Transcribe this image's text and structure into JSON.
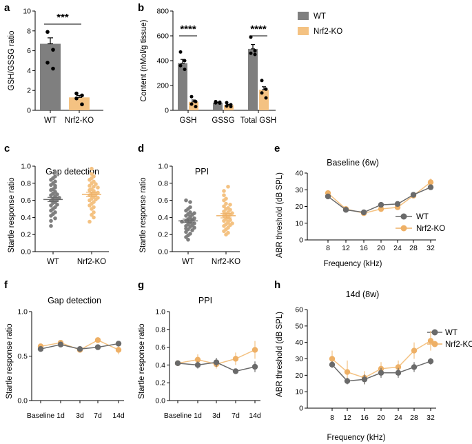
{
  "colors": {
    "wt": "#7f7f7f",
    "ko": "#f4c282",
    "wt_dark": "#6a6a6a",
    "ko_dark": "#eeb066"
  },
  "legend": {
    "wt": "WT",
    "ko": "Nrf2-KO"
  },
  "chart_data": [
    {
      "id": "a",
      "panel_label": "a",
      "type": "bar",
      "ylabel": "GSH/GSSG ratio",
      "ylim": [
        0,
        10
      ],
      "yticks": [
        "0",
        "2",
        "4",
        "6",
        "8",
        "10"
      ],
      "categories": [
        "WT",
        "Nrf2-KO"
      ],
      "values": [
        6.7,
        1.3
      ],
      "errors": [
        0.6,
        0.2
      ],
      "points": [
        [
          7.9,
          6.1,
          4.8,
          4.2
        ],
        [
          1.7,
          1.5,
          1.2,
          0.6
        ]
      ],
      "significance": "***"
    },
    {
      "id": "b",
      "panel_label": "b",
      "type": "bar",
      "ylabel": "Content (nMol/g tissue)",
      "ylim": [
        0,
        800
      ],
      "yticks": [
        "0",
        "200",
        "400",
        "600",
        "800"
      ],
      "categories": [
        "GSH",
        "GSSG",
        "Total GSH"
      ],
      "series": [
        {
          "name": "WT",
          "values": [
            380,
            62,
            495
          ],
          "errors": [
            30,
            4,
            35
          ],
          "points": [
            [
              470,
              400,
              360,
              330
            ],
            [
              70,
              65,
              60,
              58
            ],
            [
              590,
              480,
              460,
              450
            ]
          ]
        },
        {
          "name": "Nrf2-KO",
          "values": [
            68,
            42,
            165
          ],
          "errors": [
            15,
            6,
            25
          ],
          "points": [
            [
              110,
              70,
              50,
              30
            ],
            [
              62,
              45,
              35,
              30
            ],
            [
              240,
              170,
              140,
              100
            ]
          ]
        }
      ],
      "significance": [
        "****",
        "",
        "****"
      ]
    },
    {
      "id": "c",
      "panel_label": "c",
      "type": "scatter",
      "title": "Gap detection",
      "ylabel": "Startle response ratio",
      "ylim": [
        0,
        1
      ],
      "yticks": [
        "0.0",
        "0.2",
        "0.4",
        "0.6",
        "0.8",
        "1.0"
      ],
      "categories": [
        "WT",
        "Nrf2-KO"
      ],
      "means": [
        0.61,
        0.67
      ],
      "sems": [
        0.025,
        0.025
      ],
      "points": [
        [
          0.93,
          0.88,
          0.86,
          0.84,
          0.82,
          0.8,
          0.78,
          0.77,
          0.75,
          0.73,
          0.72,
          0.7,
          0.68,
          0.67,
          0.66,
          0.65,
          0.64,
          0.63,
          0.62,
          0.61,
          0.6,
          0.59,
          0.58,
          0.57,
          0.55,
          0.54,
          0.52,
          0.5,
          0.48,
          0.46,
          0.44,
          0.42,
          0.39,
          0.36,
          0.3
        ],
        [
          0.97,
          0.91,
          0.88,
          0.86,
          0.84,
          0.82,
          0.8,
          0.79,
          0.77,
          0.76,
          0.75,
          0.73,
          0.72,
          0.71,
          0.7,
          0.69,
          0.68,
          0.67,
          0.66,
          0.65,
          0.64,
          0.63,
          0.62,
          0.61,
          0.6,
          0.58,
          0.56,
          0.54,
          0.52,
          0.5,
          0.46,
          0.43,
          0.4,
          0.35
        ]
      ]
    },
    {
      "id": "d",
      "panel_label": "d",
      "type": "scatter",
      "title": "PPI",
      "ylabel": "Startle response ratio",
      "ylim": [
        0,
        1
      ],
      "yticks": [
        "0.0",
        "0.2",
        "0.4",
        "0.6",
        "0.8",
        "1.0"
      ],
      "categories": [
        "WT",
        "Nrf2-KO"
      ],
      "means": [
        0.36,
        0.42
      ],
      "sems": [
        0.02,
        0.025
      ],
      "points": [
        [
          0.6,
          0.58,
          0.52,
          0.5,
          0.48,
          0.46,
          0.45,
          0.44,
          0.43,
          0.42,
          0.41,
          0.4,
          0.39,
          0.38,
          0.37,
          0.36,
          0.35,
          0.35,
          0.34,
          0.33,
          0.32,
          0.31,
          0.3,
          0.29,
          0.28,
          0.27,
          0.26,
          0.25,
          0.23,
          0.21,
          0.19,
          0.17,
          0.14
        ],
        [
          0.76,
          0.71,
          0.66,
          0.62,
          0.6,
          0.56,
          0.55,
          0.53,
          0.51,
          0.5,
          0.49,
          0.47,
          0.46,
          0.45,
          0.44,
          0.43,
          0.42,
          0.41,
          0.4,
          0.38,
          0.37,
          0.36,
          0.35,
          0.34,
          0.33,
          0.32,
          0.31,
          0.3,
          0.28,
          0.26,
          0.24,
          0.22,
          0.2
        ]
      ]
    },
    {
      "id": "e",
      "panel_label": "e",
      "type": "line",
      "title": "Baseline (6w)",
      "xlabel": "Frequency (kHz)",
      "ylabel": "ABR threshold (dB SPL)",
      "ylim": [
        0,
        40
      ],
      "yticks": [
        "0",
        "10",
        "20",
        "30",
        "40"
      ],
      "x": [
        "8",
        "12",
        "16",
        "20",
        "24",
        "28",
        "32"
      ],
      "series": [
        {
          "name": "WT",
          "values": [
            26,
            18,
            16.5,
            21,
            21.5,
            27,
            31.5
          ],
          "errors": [
            1.2,
            0.8,
            0.7,
            0.8,
            0.8,
            1,
            1.2
          ]
        },
        {
          "name": "Nrf2-KO",
          "values": [
            28,
            18.5,
            16,
            18.5,
            19.5,
            26.5,
            34.5
          ],
          "errors": [
            1.2,
            0.8,
            0.7,
            0.8,
            1,
            1,
            2.2
          ]
        }
      ]
    },
    {
      "id": "f",
      "panel_label": "f",
      "type": "line",
      "title": "Gap detection",
      "ylabel": "Startle response ratio",
      "ylim": [
        0,
        1
      ],
      "yticks": [
        "0.0",
        "0.5",
        "1.0"
      ],
      "x": [
        "Baseline",
        "1d",
        "3d",
        "7d",
        "14d"
      ],
      "series": [
        {
          "name": "WT",
          "values": [
            0.58,
            0.63,
            0.58,
            0.6,
            0.64
          ],
          "errors": [
            0.03,
            0.03,
            0.02,
            0.03,
            0.03
          ]
        },
        {
          "name": "Nrf2-KO",
          "values": [
            0.61,
            0.65,
            0.57,
            0.68,
            0.57
          ],
          "errors": [
            0.03,
            0.03,
            0.02,
            0.03,
            0.05
          ]
        }
      ]
    },
    {
      "id": "g",
      "panel_label": "g",
      "type": "line",
      "title": "PPI",
      "ylabel": "Startle response ratio",
      "ylim": [
        0,
        1
      ],
      "yticks": [
        "0.0",
        "0.2",
        "0.4",
        "0.6",
        "0.8",
        "1.0"
      ],
      "x": [
        "Baseline",
        "1d",
        "3d",
        "7d",
        "14d"
      ],
      "series": [
        {
          "name": "WT",
          "values": [
            0.42,
            0.4,
            0.43,
            0.33,
            0.38
          ],
          "errors": [
            0.03,
            0.04,
            0.05,
            0.02,
            0.06
          ]
        },
        {
          "name": "Nrf2-KO",
          "values": [
            0.42,
            0.46,
            0.41,
            0.47,
            0.57
          ],
          "errors": [
            0.03,
            0.06,
            0.05,
            0.07,
            0.1
          ]
        }
      ]
    },
    {
      "id": "h",
      "panel_label": "h",
      "type": "line",
      "title": "14d (8w)",
      "xlabel": "Frequency (kHz)",
      "ylabel": "ABR threshold (dB SPL)",
      "ylim": [
        0,
        60
      ],
      "yticks": [
        "0",
        "10",
        "20",
        "30",
        "40",
        "50",
        "60"
      ],
      "x": [
        "8",
        "12",
        "16",
        "20",
        "24",
        "28",
        "32"
      ],
      "series": [
        {
          "name": "WT",
          "values": [
            26.5,
            16.5,
            17.5,
            21.5,
            21.5,
            25,
            28.5
          ],
          "errors": [
            2,
            2,
            3,
            3,
            3,
            3,
            2
          ]
        },
        {
          "name": "Nrf2-KO",
          "values": [
            30,
            22,
            18.5,
            24,
            25,
            35,
            41
          ],
          "errors": [
            5,
            7,
            4,
            4,
            4,
            5,
            6
          ]
        }
      ]
    }
  ]
}
